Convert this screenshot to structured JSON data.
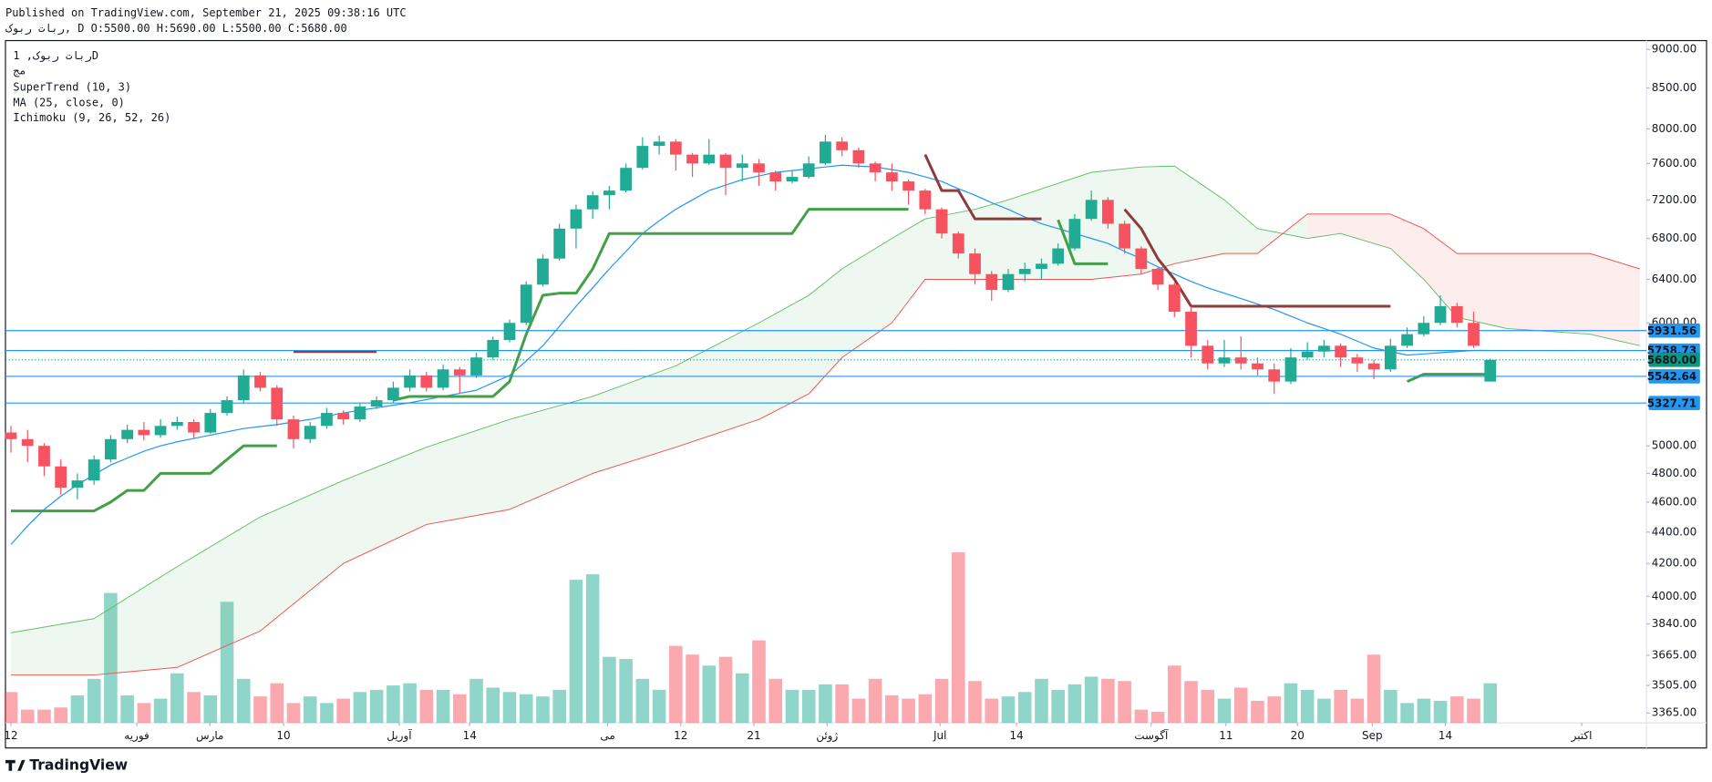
{
  "header": {
    "published": "Published on TradingView.com, September 21, 2025 09:38:16 UTC",
    "symbol_line": "ربات ربوک, D O:5500.00 H:5690.00 L:5500.00 C:5680.00"
  },
  "chart_data": {
    "type": "candlestick",
    "symbol": "ربات ربوک, 1D",
    "subtitle": "مج",
    "up_color": "#22ab94",
    "down_color": "#f7525f",
    "ohlc": [
      [
        5100,
        5150,
        4950,
        5050
      ],
      [
        5050,
        5120,
        4880,
        5000
      ],
      [
        5000,
        5020,
        4780,
        4850
      ],
      [
        4850,
        4900,
        4650,
        4700
      ],
      [
        4700,
        4800,
        4620,
        4750
      ],
      [
        4750,
        4930,
        4720,
        4900
      ],
      [
        4900,
        5080,
        4880,
        5050
      ],
      [
        5050,
        5160,
        5020,
        5120
      ],
      [
        5120,
        5180,
        5040,
        5080
      ],
      [
        5080,
        5200,
        5060,
        5150
      ],
      [
        5150,
        5220,
        5120,
        5180
      ],
      [
        5180,
        5200,
        5060,
        5100
      ],
      [
        5100,
        5280,
        5090,
        5250
      ],
      [
        5250,
        5380,
        5230,
        5350
      ],
      [
        5350,
        5600,
        5330,
        5550
      ],
      [
        5550,
        5580,
        5420,
        5450
      ],
      [
        5450,
        5470,
        5150,
        5200
      ],
      [
        5200,
        5230,
        4980,
        5050
      ],
      [
        5050,
        5180,
        5020,
        5150
      ],
      [
        5150,
        5290,
        5130,
        5250
      ],
      [
        5250,
        5270,
        5160,
        5200
      ],
      [
        5200,
        5330,
        5180,
        5300
      ],
      [
        5300,
        5380,
        5280,
        5350
      ],
      [
        5350,
        5500,
        5330,
        5450
      ],
      [
        5450,
        5600,
        5420,
        5550
      ],
      [
        5550,
        5580,
        5420,
        5450
      ],
      [
        5450,
        5640,
        5430,
        5600
      ],
      [
        5600,
        5620,
        5400,
        5550
      ],
      [
        5550,
        5740,
        5530,
        5700
      ],
      [
        5700,
        5880,
        5680,
        5850
      ],
      [
        5850,
        6030,
        5830,
        6000
      ],
      [
        6000,
        6380,
        5980,
        6350
      ],
      [
        6350,
        6640,
        6330,
        6600
      ],
      [
        6600,
        6950,
        6580,
        6900
      ],
      [
        6900,
        7150,
        6700,
        7100
      ],
      [
        7100,
        7290,
        7000,
        7250
      ],
      [
        7250,
        7350,
        7100,
        7300
      ],
      [
        7300,
        7600,
        7280,
        7550
      ],
      [
        7550,
        7900,
        7530,
        7800
      ],
      [
        7800,
        7920,
        7700,
        7850
      ],
      [
        7850,
        7880,
        7520,
        7700
      ],
      [
        7700,
        7720,
        7450,
        7600
      ],
      [
        7600,
        7880,
        7580,
        7700
      ],
      [
        7700,
        7720,
        7250,
        7550
      ],
      [
        7550,
        7700,
        7400,
        7600
      ],
      [
        7600,
        7650,
        7350,
        7500
      ],
      [
        7500,
        7520,
        7300,
        7400
      ],
      [
        7400,
        7520,
        7380,
        7450
      ],
      [
        7450,
        7680,
        7430,
        7600
      ],
      [
        7600,
        7930,
        7580,
        7850
      ],
      [
        7850,
        7900,
        7680,
        7750
      ],
      [
        7750,
        7780,
        7550,
        7600
      ],
      [
        7600,
        7620,
        7400,
        7500
      ],
      [
        7500,
        7600,
        7300,
        7400
      ],
      [
        7400,
        7420,
        7150,
        7300
      ],
      [
        7300,
        7320,
        7050,
        7100
      ],
      [
        7100,
        7120,
        6800,
        6850
      ],
      [
        6850,
        6870,
        6600,
        6650
      ],
      [
        6650,
        6700,
        6350,
        6450
      ],
      [
        6450,
        6480,
        6200,
        6300
      ],
      [
        6300,
        6500,
        6280,
        6450
      ],
      [
        6450,
        6560,
        6380,
        6500
      ],
      [
        6500,
        6600,
        6400,
        6550
      ],
      [
        6550,
        6750,
        6530,
        6700
      ],
      [
        6700,
        7050,
        6680,
        7000
      ],
      [
        7000,
        7300,
        6980,
        7200
      ],
      [
        7200,
        7230,
        6900,
        6950
      ],
      [
        6950,
        6980,
        6650,
        6700
      ],
      [
        6700,
        6720,
        6450,
        6500
      ],
      [
        6500,
        6520,
        6300,
        6350
      ],
      [
        6350,
        6370,
        6050,
        6100
      ],
      [
        6100,
        6150,
        5700,
        5800
      ],
      [
        5800,
        5850,
        5600,
        5650
      ],
      [
        5650,
        5850,
        5620,
        5700
      ],
      [
        5700,
        5880,
        5600,
        5650
      ],
      [
        5650,
        5700,
        5550,
        5600
      ],
      [
        5600,
        5650,
        5400,
        5500
      ],
      [
        5500,
        5780,
        5480,
        5700
      ],
      [
        5700,
        5830,
        5680,
        5750
      ],
      [
        5750,
        5850,
        5700,
        5800
      ],
      [
        5800,
        5820,
        5620,
        5700
      ],
      [
        5700,
        5730,
        5580,
        5650
      ],
      [
        5650,
        5680,
        5520,
        5600
      ],
      [
        5600,
        5860,
        5580,
        5800
      ],
      [
        5800,
        5960,
        5780,
        5900
      ],
      [
        5900,
        6060,
        5880,
        6000
      ],
      [
        6000,
        6250,
        5980,
        6150
      ],
      [
        6150,
        6180,
        5960,
        6000
      ],
      [
        6000,
        6100,
        5780,
        5800
      ],
      [
        5500,
        5690,
        5500,
        5680
      ]
    ],
    "volume": [
      28,
      12,
      12,
      14,
      25,
      40,
      118,
      25,
      18,
      22,
      45,
      28,
      25,
      110,
      40,
      24,
      36,
      18,
      24,
      18,
      22,
      28,
      30,
      34,
      36,
      30,
      30,
      26,
      40,
      32,
      28,
      26,
      24,
      30,
      130,
      135,
      60,
      58,
      40,
      30,
      70,
      62,
      52,
      60,
      45,
      75,
      40,
      30,
      30,
      35,
      35,
      22,
      40,
      25,
      22,
      26,
      40,
      155,
      38,
      22,
      24,
      28,
      40,
      30,
      35,
      42,
      40,
      38,
      12,
      10,
      52,
      38,
      30,
      22,
      32,
      20,
      24,
      36,
      30,
      22,
      30,
      22,
      62,
      30,
      18,
      22,
      20,
      24,
      22,
      36
    ],
    "volume_ylim": [
      0,
      620
    ],
    "supertrend": {
      "name": "SuperTrend (10, 3)",
      "up_color": "#43a047",
      "down_color": "#8e3b3b",
      "up": [
        4540,
        4540,
        4540,
        4540,
        4540,
        4540,
        4600,
        4680,
        4680,
        4800,
        4800,
        4800,
        4800,
        4900,
        5000,
        5000,
        5000,
        null,
        null,
        null,
        null,
        null,
        null,
        5350,
        5380,
        5380,
        5380,
        5380,
        5380,
        5380,
        5500,
        5900,
        6250,
        6270,
        6270,
        6500,
        6850,
        6850,
        6850,
        6850,
        6850,
        6850,
        6850,
        6850,
        6850,
        6850,
        6850,
        6850,
        7100,
        7100,
        7100,
        7100,
        7100,
        7100,
        7100,
        null,
        null,
        null,
        null,
        null,
        null,
        null,
        null,
        6990,
        6550,
        6550,
        6550,
        null,
        null,
        null,
        null,
        null,
        null,
        null,
        null,
        null,
        null,
        null,
        null,
        null,
        null,
        null,
        null,
        null,
        5500,
        5560,
        5560,
        5560,
        5560,
        5560
      ],
      "down": [
        null,
        null,
        null,
        null,
        null,
        null,
        null,
        null,
        null,
        null,
        null,
        null,
        null,
        null,
        null,
        null,
        null,
        5750,
        5750,
        5750,
        5750,
        5750,
        5750,
        null,
        null,
        null,
        null,
        null,
        null,
        null,
        null,
        null,
        null,
        null,
        null,
        null,
        null,
        null,
        null,
        null,
        null,
        null,
        null,
        null,
        null,
        null,
        null,
        null,
        null,
        null,
        null,
        null,
        null,
        null,
        null,
        7700,
        7300,
        7300,
        7000,
        7000,
        7000,
        7000,
        7000,
        null,
        null,
        null,
        null,
        7100,
        6900,
        6600,
        6400,
        6150,
        6150,
        6150,
        6150,
        6150,
        6150,
        6150,
        6150,
        6150,
        6150,
        6150,
        6150,
        6150,
        null,
        null,
        null,
        null,
        null,
        null
      ]
    },
    "ma": {
      "name": "MA (25, close, 0)",
      "color": "#2196f3",
      "values": [
        4320,
        4440,
        4550,
        4640,
        4720,
        4790,
        4860,
        4910,
        4960,
        5000,
        5030,
        5055,
        5080,
        5105,
        5130,
        5145,
        5160,
        5180,
        5200,
        5225,
        5250,
        5270,
        5290,
        5310,
        5330,
        5355,
        5380,
        5405,
        5430,
        5490,
        5550,
        5670,
        5800,
        5970,
        6150,
        6320,
        6500,
        6670,
        6850,
        6980,
        7100,
        7200,
        7300,
        7360,
        7420,
        7460,
        7500,
        7520,
        7540,
        7560,
        7580,
        7570,
        7560,
        7530,
        7500,
        7450,
        7400,
        7320,
        7250,
        7170,
        7100,
        7020,
        6950,
        6900,
        6850,
        6800,
        6750,
        6670,
        6600,
        6520,
        6450,
        6380,
        6320,
        6270,
        6220,
        6170,
        6120,
        6060,
        6000,
        5950,
        5900,
        5840,
        5780,
        5750,
        5720,
        5730,
        5740,
        5750,
        5760,
        5760
      ]
    },
    "ichimoku": {
      "name": "Ichimoku (9, 26, 52, 26)",
      "a_color": "#66bb6a",
      "b_color": "#ef5350",
      "x": [
        0,
        5,
        10,
        15,
        20,
        25,
        30,
        35,
        40,
        45,
        48,
        50,
        53,
        55,
        58,
        60,
        65,
        68,
        70,
        73,
        75,
        78,
        80,
        83,
        85,
        87,
        90,
        95,
        98
      ],
      "span_a": [
        3790,
        3870,
        4180,
        4500,
        4750,
        4990,
        5200,
        5380,
        5630,
        6000,
        6250,
        6500,
        6800,
        7000,
        7100,
        7200,
        7500,
        7560,
        7570,
        7200,
        6900,
        6800,
        6850,
        6700,
        6400,
        6050,
        5950,
        5900,
        5800
      ],
      "span_b": [
        3560,
        3560,
        3600,
        3800,
        4200,
        4450,
        4550,
        4800,
        4990,
        5200,
        5400,
        5700,
        6000,
        6400,
        6400,
        6400,
        6400,
        6450,
        6550,
        6650,
        6650,
        7050,
        7050,
        7050,
        6900,
        6650,
        6650,
        6650,
        6500
      ]
    },
    "xlim": [
      -0.33,
      98.4
    ],
    "xticks": [
      {
        "value": 0,
        "label": "12"
      },
      {
        "value": 7.57,
        "label": "فوریه"
      },
      {
        "value": 11.97,
        "label": "مارس"
      },
      {
        "value": 16.4,
        "label": "10"
      },
      {
        "value": 23.36,
        "label": "آوریل"
      },
      {
        "value": 27.6,
        "label": "14"
      },
      {
        "value": 35.9,
        "label": "می"
      },
      {
        "value": 40.3,
        "label": "12"
      },
      {
        "value": 44.7,
        "label": "21"
      },
      {
        "value": 49.1,
        "label": "ژوئن"
      },
      {
        "value": 55.9,
        "label": "Jul"
      },
      {
        "value": 60.5,
        "label": "14"
      },
      {
        "value": 68.6,
        "label": "آگوست"
      },
      {
        "value": 73.1,
        "label": "11"
      },
      {
        "value": 77.4,
        "label": "20"
      },
      {
        "value": 81.9,
        "label": "Sep"
      },
      {
        "value": 86.3,
        "label": "14"
      },
      {
        "value": 94.5,
        "label": "اکتبر"
      }
    ],
    "ylim": [
      3316,
      9118
    ],
    "log_scale": true,
    "yticks": [
      {
        "value": 9000,
        "label": "9000.00"
      },
      {
        "value": 8500,
        "label": "8500.00"
      },
      {
        "value": 8000,
        "label": "8000.00"
      },
      {
        "value": 7600,
        "label": "7600.00"
      },
      {
        "value": 7200,
        "label": "7200.00"
      },
      {
        "value": 6800,
        "label": "6800.00"
      },
      {
        "value": 6400,
        "label": "6400.00"
      },
      {
        "value": 6000,
        "label": "6000.00"
      },
      {
        "value": 5000,
        "label": "5000.00"
      },
      {
        "value": 4800,
        "label": "4800.00"
      },
      {
        "value": 4600,
        "label": "4600.00"
      },
      {
        "value": 4400,
        "label": "4400.00"
      },
      {
        "value": 4200,
        "label": "4200.00"
      },
      {
        "value": 4000,
        "label": "4000.00"
      },
      {
        "value": 3840,
        "label": "3840.00"
      },
      {
        "value": 3665,
        "label": "3665.00"
      },
      {
        "value": 3505,
        "label": "3505.00"
      },
      {
        "value": 3365,
        "label": "3365.00"
      }
    ],
    "price_lines": [
      {
        "value": 5931.56,
        "label": "5931.56",
        "color": "#2196f3",
        "style": "solid"
      },
      {
        "value": 5758.73,
        "label": "5758.73",
        "color": "#2196f3",
        "style": "solid"
      },
      {
        "value": 5680,
        "label": "5680.00",
        "color": "#089981",
        "style": "dotted"
      },
      {
        "value": 5542.64,
        "label": "5542.64",
        "color": "#2196f3",
        "style": "solid"
      },
      {
        "value": 5327.71,
        "label": "5327.71",
        "color": "#2196f3",
        "style": "solid"
      }
    ],
    "footer": "TradingView"
  }
}
